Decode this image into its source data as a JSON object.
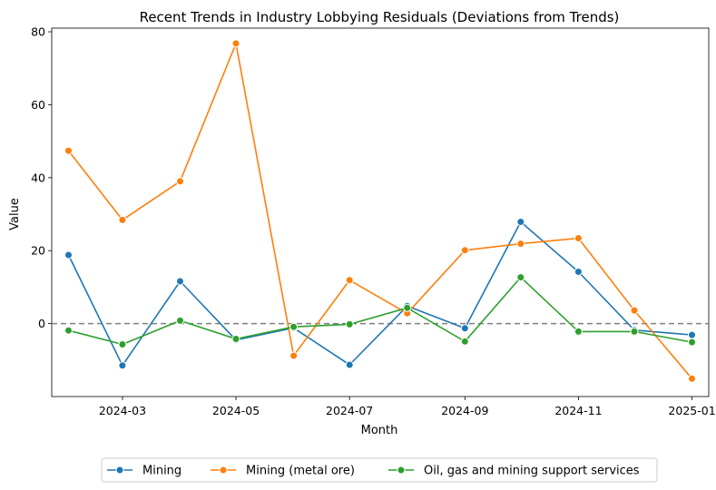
{
  "chart_data": {
    "type": "line",
    "title": "Recent Trends in Industry Lobbying Residuals (Deviations from Trends)",
    "xlabel": "Month",
    "ylabel": "Value",
    "x": [
      "2024-02-01",
      "2024-03-01",
      "2024-04-01",
      "2024-05-01",
      "2024-06-01",
      "2024-07-01",
      "2024-08-01",
      "2024-09-01",
      "2024-10-01",
      "2024-11-01",
      "2024-12-01",
      "2025-01-01"
    ],
    "x_ticks": [
      "2024-03",
      "2024-05",
      "2024-07",
      "2024-09",
      "2024-11",
      "2025-01"
    ],
    "y_ticks": [
      0,
      20,
      40,
      60,
      80
    ],
    "ylim": [
      -20,
      81
    ],
    "reference_line": {
      "y": 0,
      "style": "dashed",
      "color": "#808080"
    },
    "series": [
      {
        "name": "Mining",
        "color": "#1f77b4",
        "values": [
          18.8,
          -11.5,
          11.6,
          -4.5,
          -1.2,
          -11.3,
          4.8,
          -1.3,
          27.9,
          14.2,
          -1.8,
          -3.1
        ]
      },
      {
        "name": "Mining (metal ore)",
        "color": "#ff7f0e",
        "values": [
          47.4,
          28.4,
          39.0,
          76.8,
          -8.8,
          11.9,
          2.8,
          20.1,
          21.9,
          23.4,
          3.6,
          -15.1
        ]
      },
      {
        "name": "Oil, gas and mining support services",
        "color": "#2ca02c",
        "values": [
          -1.9,
          -5.7,
          0.8,
          -4.2,
          -0.9,
          -0.2,
          4.3,
          -4.9,
          12.7,
          -2.2,
          -2.2,
          -5.1
        ]
      }
    ],
    "legend_position": "bottom-center",
    "grid": false
  }
}
